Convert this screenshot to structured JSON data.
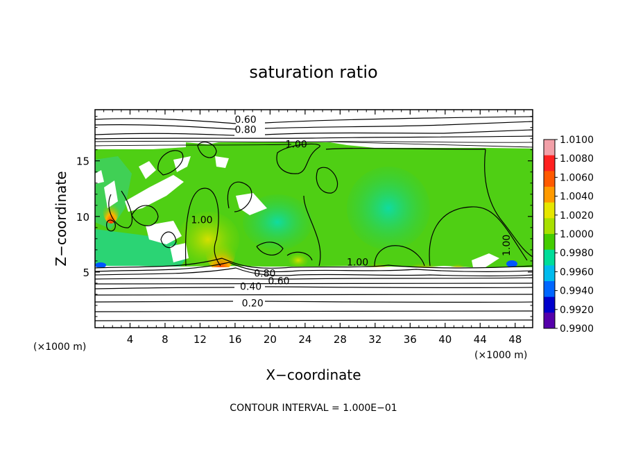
{
  "chart_data": {
    "type": "heatmap",
    "title": "saturation ratio",
    "xlabel": "X−coordinate",
    "ylabel": "Z−coordinate",
    "x_unit_left": "(×1000 m)",
    "x_unit_right": "(×1000 m)",
    "footer": "CONTOUR INTERVAL = 1.000E−01",
    "xlim": [
      0,
      50
    ],
    "ylim": [
      0,
      19.6
    ],
    "x_ticks": [
      4,
      8,
      12,
      16,
      20,
      24,
      28,
      32,
      36,
      40,
      44,
      48
    ],
    "x_tick_labels": [
      "4",
      "8",
      "12",
      "16",
      "20",
      "24",
      "28",
      "32",
      "36",
      "40",
      "44",
      "48"
    ],
    "y_ticks": [
      5,
      10,
      15
    ],
    "y_tick_labels": [
      "5",
      "10",
      "15"
    ],
    "colorbar": {
      "range": [
        0.99,
        1.01
      ],
      "labels": [
        "1.0100",
        "1.0080",
        "1.0060",
        "1.0040",
        "1.0020",
        "1.0000",
        "0.9980",
        "0.9960",
        "0.9940",
        "0.9920",
        "0.9900"
      ],
      "colors": [
        "#f2a0a8",
        "#ff2020",
        "#ff5a00",
        "#ff9a00",
        "#e6e600",
        "#a8e000",
        "#44cc00",
        "#00dd99",
        "#00bbee",
        "#0066ff",
        "#0000cc",
        "#5500aa"
      ]
    },
    "contour_labels": [
      {
        "text": "0.60",
        "x": 17.2,
        "y": 18.4
      },
      {
        "text": "0.80",
        "x": 17.2,
        "y": 17.5
      },
      {
        "text": "1.00",
        "x": 23.0,
        "y": 16.2
      },
      {
        "text": "1.00",
        "x": 12.2,
        "y": 9.4
      },
      {
        "text": "1.00",
        "x": 30.0,
        "y": 5.6
      },
      {
        "text": "1.00",
        "x": 47.4,
        "y": 7.4
      },
      {
        "text": "0.80",
        "x": 19.4,
        "y": 4.6
      },
      {
        "text": "0.60",
        "x": 21.0,
        "y": 3.9
      },
      {
        "text": "0.40",
        "x": 17.8,
        "y": 3.4
      },
      {
        "text": "0.20",
        "x": 18.0,
        "y": 1.9
      }
    ]
  }
}
